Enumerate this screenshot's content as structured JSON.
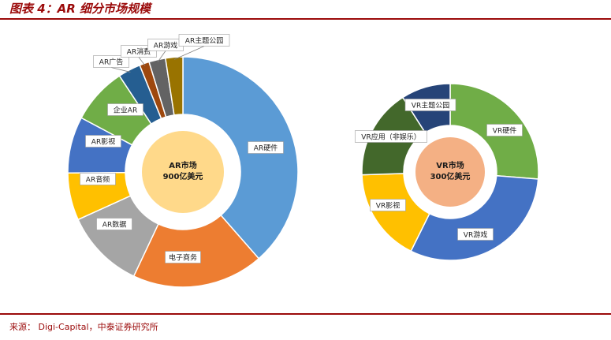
{
  "header": {
    "title": "图表 4：AR 细分市场规模"
  },
  "footer": {
    "source": "来源：  Digi-Capital，中泰证券研究所"
  },
  "chart_data": [
    {
      "type": "pie",
      "variant": "donut",
      "center_label": [
        "AR市场",
        "900亿美元"
      ],
      "center_color": "#ffd98a",
      "categories": [
        "AR硬件",
        "电子商务",
        "AR数据",
        "AR音频",
        "AR影视",
        "企业AR",
        "AR广告",
        "AR消费",
        "AR游戏",
        "AR主题公园"
      ],
      "values": [
        36.5,
        17.5,
        10.6,
        6.3,
        7.5,
        7.5,
        3.0,
        1.3,
        2.2,
        2.3
      ],
      "colors": [
        "#5b9bd5",
        "#ed7d31",
        "#a5a5a5",
        "#ffc000",
        "#4472c4",
        "#70ad47",
        "#255e91",
        "#9e480e",
        "#636363",
        "#997300"
      ]
    },
    {
      "type": "pie",
      "variant": "donut",
      "center_label": [
        "VR市场",
        "300亿美元"
      ],
      "center_color": "#f4b084",
      "categories": [
        "VR硬件",
        "VR游戏",
        "VR影视",
        "VR应用（非娱乐）",
        "VR主题公园"
      ],
      "values": [
        24.2,
        28.6,
        15.8,
        15.2,
        8.3
      ],
      "colors": [
        "#70ad47",
        "#4472c4",
        "#ffc000",
        "#43682b",
        "#264478"
      ]
    }
  ]
}
